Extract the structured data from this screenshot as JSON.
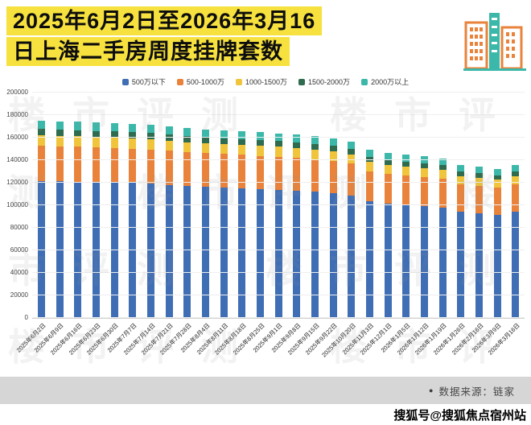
{
  "title": {
    "line1": "2025年6月2日至2026年3月16",
    "line2": "日上海二手房周度挂牌套数"
  },
  "watermark": "楼市评测",
  "chart_data": {
    "type": "bar",
    "stacked": true,
    "title": "2025年6月2日至2026年3月16日上海二手房周度挂牌套数",
    "xlabel": "",
    "ylabel": "",
    "ylim": [
      0,
      200000
    ],
    "ytick_step": 20000,
    "grid": true,
    "legend_position": "top",
    "categories": [
      "2025年6月2日",
      "2025年6月9日",
      "2025年6月16日",
      "2025年6月23日",
      "2025年6月30日",
      "2025年7月7日",
      "2025年7月14日",
      "2025年7月21日",
      "2025年7月28日",
      "2025年8月4日",
      "2025年8月11日",
      "2025年8月18日",
      "2025年8月25日",
      "2025年9月1日",
      "2025年9月8日",
      "2025年9月15日",
      "2025年9月22日",
      "2025年10月20日",
      "2025年11月3日",
      "2025年12月1日",
      "2026年1月5日",
      "2026年1月12日",
      "2026年1月19日",
      "2026年1月26日",
      "2026年2月16日",
      "2026年3月9日",
      "2026年3月16日"
    ],
    "series": [
      {
        "name": "500万以下",
        "color": "#3f6eb5",
        "values": [
          122000,
          121600,
          121300,
          120900,
          120500,
          120000,
          119400,
          118300,
          117200,
          116600,
          116000,
          115400,
          114700,
          114000,
          113200,
          112200,
          110800,
          108800,
          103500,
          101500,
          100500,
          99500,
          98000,
          94500,
          93000,
          91500,
          94500
        ]
      },
      {
        "name": "500-1000万",
        "color": "#e9833b",
        "values": [
          31000,
          30900,
          30800,
          30700,
          30500,
          30400,
          30300,
          30200,
          30000,
          29800,
          29700,
          29500,
          29400,
          29300,
          29100,
          28900,
          28700,
          28300,
          27000,
          26500,
          26200,
          26000,
          25800,
          24500,
          24300,
          24200,
          24000
        ]
      },
      {
        "name": "1000-1500万",
        "color": "#f0c53c",
        "values": [
          9500,
          9400,
          9400,
          9300,
          9300,
          9200,
          9200,
          9100,
          9000,
          9000,
          8900,
          8900,
          8800,
          8800,
          8700,
          8600,
          8500,
          8400,
          8000,
          7900,
          7800,
          7800,
          7700,
          7300,
          7200,
          7100,
          7300
        ]
      },
      {
        "name": "1500-2000万",
        "color": "#2f6b4f",
        "values": [
          5500,
          5450,
          5400,
          5400,
          5350,
          5300,
          5300,
          5250,
          5200,
          5200,
          5150,
          5100,
          5100,
          5050,
          5000,
          5000,
          4900,
          4800,
          4600,
          4550,
          4500,
          4450,
          4400,
          4200,
          4150,
          4100,
          4200
        ]
      },
      {
        "name": "2000万以上",
        "color": "#3bb8a9",
        "values": [
          7500,
          7450,
          7400,
          7350,
          7300,
          7300,
          7250,
          7200,
          7100,
          7100,
          7050,
          7000,
          6950,
          6900,
          6850,
          6800,
          6700,
          6600,
          6300,
          6250,
          6200,
          6150,
          6100,
          5800,
          5750,
          5700,
          5800
        ]
      }
    ]
  },
  "footer": {
    "dot": "●",
    "source_label": "数据来源：链家",
    "sohu_label": "搜狐号@搜狐焦点宿州站"
  }
}
